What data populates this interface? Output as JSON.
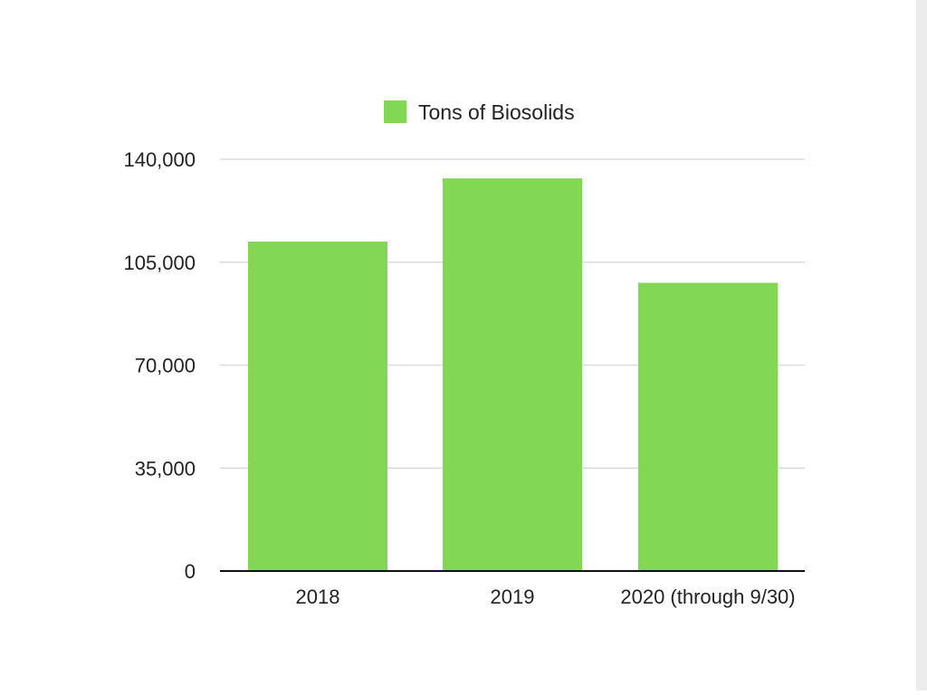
{
  "chart_data": {
    "type": "bar",
    "categories": [
      "2018",
      "2019",
      "2020 (through 9/30)"
    ],
    "series": [
      {
        "name": "Tons of Biosolids",
        "values": [
          112000,
          133500,
          98000
        ]
      }
    ],
    "ylim": [
      0,
      140000
    ],
    "yticks": [
      0,
      35000,
      70000,
      105000,
      140000
    ],
    "ytick_labels": [
      "0",
      "35,000",
      "70,000",
      "105,000",
      "140,000"
    ],
    "grid": true,
    "legend_position": "top-center",
    "colors": {
      "bar": "#82d855",
      "grid": "#dcdcdc",
      "axis": "#111111"
    }
  }
}
